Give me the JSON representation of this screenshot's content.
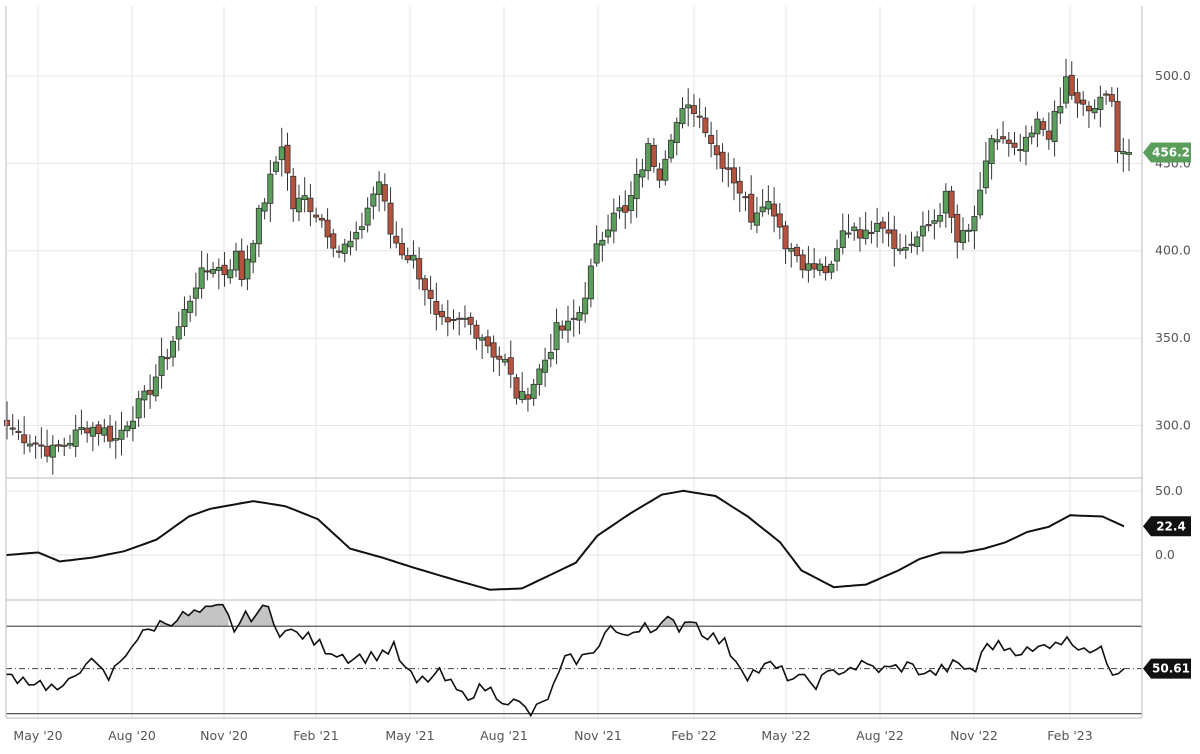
{
  "chart_data": {
    "type": "candlestick",
    "x_labels": [
      "May '20",
      "Aug '20",
      "Nov '20",
      "Feb '21",
      "May '21",
      "Aug '21",
      "Nov '21",
      "Feb '22",
      "May '22",
      "Aug '22",
      "Nov '22",
      "Feb '23"
    ],
    "price_pane": {
      "ylim": [
        270,
        540
      ],
      "yticks": [
        "300.0",
        "350.0",
        "400.0",
        "450.0",
        "500.0"
      ],
      "last_value": "456.2",
      "up_color": "#5b9d5b",
      "down_color": "#b5533f",
      "anchors": [
        [
          0,
          300
        ],
        [
          4,
          292
        ],
        [
          8,
          285
        ],
        [
          11,
          292
        ],
        [
          14,
          300
        ],
        [
          17,
          297
        ],
        [
          19,
          292
        ],
        [
          21,
          303
        ],
        [
          24,
          315
        ],
        [
          27,
          335
        ],
        [
          30,
          356
        ],
        [
          33,
          382
        ],
        [
          36,
          392
        ],
        [
          38,
          388
        ],
        [
          40,
          397
        ],
        [
          41,
          385
        ],
        [
          44,
          420
        ],
        [
          46,
          440
        ],
        [
          48,
          462
        ],
        [
          50,
          425
        ],
        [
          52,
          430
        ],
        [
          55,
          418
        ],
        [
          58,
          400
        ],
        [
          61,
          406
        ],
        [
          63,
          425
        ],
        [
          65,
          440
        ],
        [
          67,
          410
        ],
        [
          69,
          400
        ],
        [
          71,
          395
        ],
        [
          73,
          380
        ],
        [
          75,
          360
        ],
        [
          77,
          355
        ],
        [
          80,
          360
        ],
        [
          83,
          352
        ],
        [
          85,
          342
        ],
        [
          87,
          336
        ],
        [
          89,
          318
        ],
        [
          90,
          315
        ],
        [
          92,
          325
        ],
        [
          94,
          338
        ],
        [
          96,
          354
        ],
        [
          98,
          356
        ],
        [
          100,
          365
        ],
        [
          103,
          400
        ],
        [
          106,
          425
        ],
        [
          108,
          420
        ],
        [
          110,
          440
        ],
        [
          112,
          458
        ],
        [
          114,
          445
        ],
        [
          116,
          468
        ],
        [
          118,
          478
        ],
        [
          120,
          482
        ],
        [
          122,
          472
        ],
        [
          124,
          455
        ],
        [
          126,
          448
        ],
        [
          128,
          435
        ],
        [
          130,
          420
        ],
        [
          132,
          430
        ],
        [
          134,
          424
        ],
        [
          136,
          405
        ],
        [
          138,
          398
        ],
        [
          140,
          390
        ],
        [
          142,
          390
        ],
        [
          144,
          388
        ],
        [
          146,
          410
        ],
        [
          148,
          415
        ],
        [
          150,
          408
        ],
        [
          152,
          420
        ],
        [
          154,
          412
        ],
        [
          156,
          400
        ],
        [
          158,
          405
        ],
        [
          160,
          410
        ],
        [
          162,
          418
        ],
        [
          164,
          430
        ],
        [
          166,
          405
        ],
        [
          168,
          410
        ],
        [
          170,
          430
        ],
        [
          172,
          465
        ],
        [
          174,
          462
        ],
        [
          176,
          455
        ],
        [
          178,
          460
        ],
        [
          180,
          472
        ],
        [
          182,
          468
        ],
        [
          184,
          482
        ],
        [
          185,
          498
        ],
        [
          187,
          482
        ],
        [
          189,
          480
        ],
        [
          191,
          484
        ],
        [
          193,
          490
        ],
        [
          194,
          458
        ],
        [
          196,
          456.2
        ]
      ]
    },
    "momentum_pane": {
      "yticks": [
        "50.0",
        "0.0"
      ],
      "last_value": "22.4",
      "ylim": [
        -35,
        60
      ],
      "anchors": [
        [
          0,
          0
        ],
        [
          6,
          2
        ],
        [
          10,
          -5
        ],
        [
          16,
          -2
        ],
        [
          22,
          3
        ],
        [
          28,
          12
        ],
        [
          34,
          30
        ],
        [
          38,
          36
        ],
        [
          46,
          42
        ],
        [
          52,
          38
        ],
        [
          58,
          28
        ],
        [
          64,
          5
        ],
        [
          70,
          -2
        ],
        [
          76,
          -10
        ],
        [
          84,
          -20
        ],
        [
          90,
          -27
        ],
        [
          96,
          -26
        ],
        [
          100,
          -18
        ],
        [
          106,
          -6
        ],
        [
          110,
          15
        ],
        [
          116,
          32
        ],
        [
          122,
          47
        ],
        [
          126,
          50
        ],
        [
          132,
          46
        ],
        [
          138,
          30
        ],
        [
          144,
          10
        ],
        [
          148,
          -12
        ],
        [
          154,
          -25
        ],
        [
          160,
          -23
        ],
        [
          166,
          -12
        ],
        [
          170,
          -3
        ],
        [
          174,
          2
        ],
        [
          178,
          2
        ],
        [
          182,
          5
        ],
        [
          186,
          10
        ],
        [
          190,
          18
        ],
        [
          194,
          22
        ],
        [
          198,
          31
        ],
        [
          204,
          30
        ],
        [
          208,
          22.4
        ]
      ]
    },
    "rsi_pane": {
      "last_value": "50.61",
      "upper_level": 70,
      "lower_level": 30,
      "mid_level": 50.61,
      "ylim": [
        28,
        82
      ],
      "anchors": [
        [
          0,
          48
        ],
        [
          3,
          46
        ],
        [
          6,
          44
        ],
        [
          10,
          40
        ],
        [
          14,
          55
        ],
        [
          18,
          46
        ],
        [
          22,
          62
        ],
        [
          26,
          70
        ],
        [
          30,
          74
        ],
        [
          34,
          76
        ],
        [
          38,
          78
        ],
        [
          40,
          69
        ],
        [
          42,
          74
        ],
        [
          46,
          78
        ],
        [
          48,
          68
        ],
        [
          52,
          66
        ],
        [
          56,
          60
        ],
        [
          60,
          56
        ],
        [
          64,
          56
        ],
        [
          68,
          60
        ],
        [
          70,
          50
        ],
        [
          72,
          44
        ],
        [
          76,
          48
        ],
        [
          80,
          38
        ],
        [
          84,
          42
        ],
        [
          88,
          36
        ],
        [
          90,
          34
        ],
        [
          92,
          30
        ],
        [
          94,
          34
        ],
        [
          96,
          42
        ],
        [
          98,
          54
        ],
        [
          102,
          56
        ],
        [
          106,
          70
        ],
        [
          108,
          64
        ],
        [
          112,
          72
        ],
        [
          114,
          68
        ],
        [
          116,
          72
        ],
        [
          118,
          70
        ],
        [
          120,
          74
        ],
        [
          122,
          68
        ],
        [
          126,
          62
        ],
        [
          130,
          48
        ],
        [
          134,
          52
        ],
        [
          138,
          46
        ],
        [
          142,
          44
        ],
        [
          146,
          50
        ],
        [
          150,
          52
        ],
        [
          154,
          50
        ],
        [
          158,
          52
        ],
        [
          162,
          48
        ],
        [
          166,
          52
        ],
        [
          170,
          50
        ],
        [
          172,
          62
        ],
        [
          176,
          60
        ],
        [
          180,
          58
        ],
        [
          184,
          64
        ],
        [
          188,
          62
        ],
        [
          192,
          58
        ],
        [
          194,
          50
        ],
        [
          196,
          50.61
        ]
      ]
    }
  }
}
